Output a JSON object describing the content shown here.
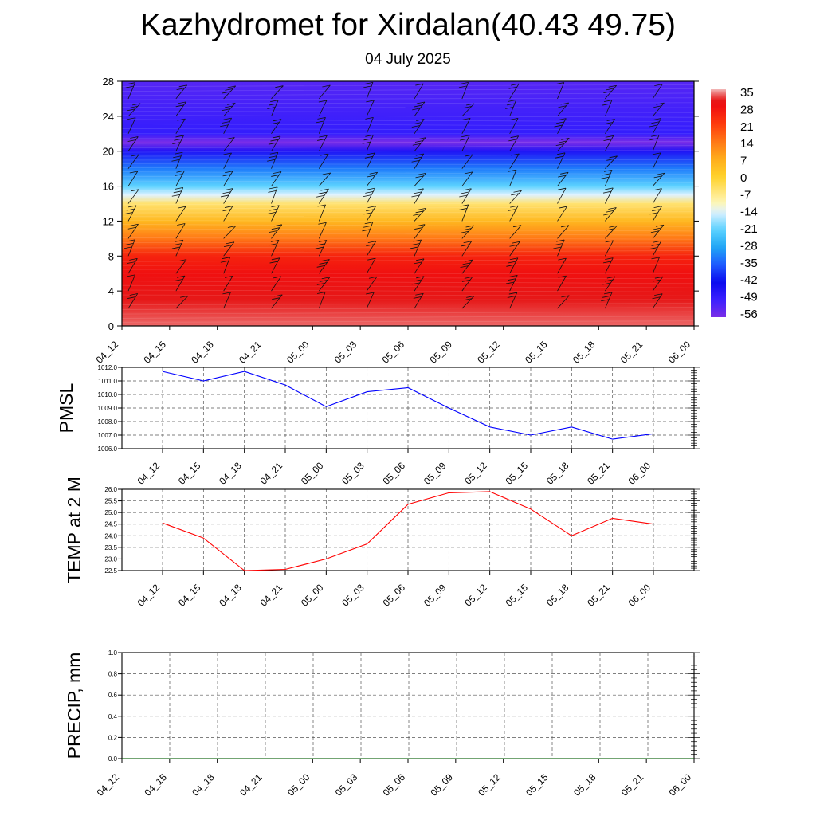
{
  "title": "Kazhydromet for Xirdalan(40.43 49.75)",
  "subtitle": "04 July 2025",
  "colorbar": {
    "labels": [
      "35",
      "28",
      "21",
      "14",
      "7",
      "0",
      "-7",
      "-14",
      "-21",
      "-28",
      "-35",
      "-42",
      "-49",
      "-56"
    ]
  },
  "chart_data": [
    {
      "type": "heatmap",
      "title": "",
      "xlabel": "",
      "ylabel": "",
      "x": [
        "04_12",
        "04_15",
        "04_18",
        "04_21",
        "05_00",
        "05_03",
        "05_06",
        "05_09",
        "05_12",
        "05_15",
        "05_18",
        "05_21",
        "06_00"
      ],
      "ylim": [
        0,
        28
      ],
      "yticks": [
        "0",
        "4",
        "8",
        "12",
        "16",
        "20",
        "24",
        "28"
      ],
      "profile": [
        {
          "y": 0,
          "value": 33
        },
        {
          "y": 3,
          "value": 31
        },
        {
          "y": 6,
          "value": 28
        },
        {
          "y": 8,
          "value": 25
        },
        {
          "y": 10,
          "value": 14
        },
        {
          "y": 12,
          "value": 5
        },
        {
          "y": 14,
          "value": -5
        },
        {
          "y": 15,
          "value": -14
        },
        {
          "y": 16,
          "value": -21
        },
        {
          "y": 18,
          "value": -32
        },
        {
          "y": 20,
          "value": -45
        },
        {
          "y": 21,
          "value": -56
        },
        {
          "y": 22,
          "value": -48
        },
        {
          "y": 28,
          "value": -52
        }
      ],
      "colorscale_range": [
        -56,
        35
      ],
      "wind_barbs": true
    },
    {
      "type": "line",
      "ylabel": "PMSL",
      "x": [
        "04_12",
        "04_15",
        "04_18",
        "04_21",
        "05_00",
        "05_03",
        "05_06",
        "05_09",
        "05_12",
        "05_15",
        "05_18",
        "05_21",
        "06_00"
      ],
      "series": [
        {
          "values": [
            1011.7,
            1011.0,
            1011.7,
            1010.7,
            1009.1,
            1010.2,
            1010.5,
            1009.0,
            1007.6,
            1007.0,
            1007.6,
            1006.7,
            1007.1
          ],
          "color": "#0000ff"
        }
      ],
      "ylim": [
        1006.0,
        1012.0
      ],
      "yticks": [
        "1006.0",
        "1007.0",
        "1008.0",
        "1009.0",
        "1010.0",
        "1011.0",
        "1012.0"
      ]
    },
    {
      "type": "line",
      "ylabel": "TEMP at 2 M",
      "x": [
        "04_12",
        "04_15",
        "04_18",
        "04_21",
        "05_00",
        "05_03",
        "05_06",
        "05_09",
        "05_12",
        "05_15",
        "05_18",
        "05_21",
        "06_00"
      ],
      "series": [
        {
          "values": [
            24.55,
            23.9,
            22.5,
            22.55,
            23.0,
            23.65,
            25.35,
            25.85,
            25.9,
            25.15,
            24.0,
            24.75,
            24.5
          ],
          "color": "#ff0000"
        }
      ],
      "ylim": [
        22.5,
        26.0
      ],
      "yticks": [
        "22.5",
        "23.0",
        "23.5",
        "24.0",
        "24.5",
        "25.0",
        "25.5",
        "26.0"
      ]
    },
    {
      "type": "line",
      "ylabel": "PRECIP, mm",
      "x": [
        "04_12",
        "04_15",
        "04_18",
        "04_21",
        "05_00",
        "05_03",
        "05_06",
        "05_09",
        "05_12",
        "05_15",
        "05_18",
        "05_21",
        "06_00"
      ],
      "series": [
        {
          "values": [
            0,
            0,
            0,
            0,
            0,
            0,
            0,
            0,
            0,
            0,
            0,
            0,
            0
          ],
          "color": "#006400"
        }
      ],
      "ylim": [
        0.0,
        1.0
      ],
      "yticks": [
        "0.0",
        "0.2",
        "0.4",
        "0.6",
        "0.8",
        "1.0"
      ]
    }
  ]
}
